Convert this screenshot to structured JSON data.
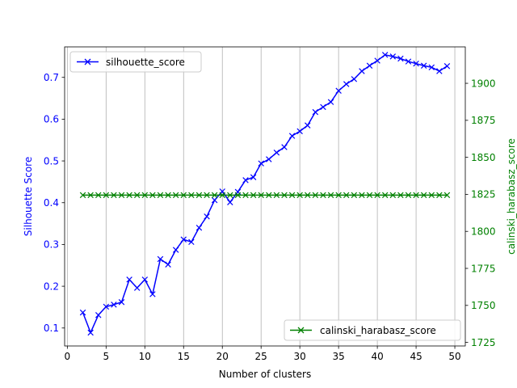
{
  "chart_data": {
    "type": "line",
    "xlabel": "Number of clusters",
    "ylabel_left": "Silhouette Score",
    "ylabel_right": "calinski_harabasz_score",
    "xlim": [
      -0.35,
      51.35
    ],
    "ylim_left": [
      0.057,
      0.773
    ],
    "ylim_right": [
      1722.6,
      1924.6
    ],
    "x_ticks": [
      0,
      5,
      10,
      15,
      20,
      25,
      30,
      35,
      40,
      45,
      50
    ],
    "y_left_ticks": [
      0.1,
      0.2,
      0.3,
      0.4,
      0.5,
      0.6,
      0.7
    ],
    "y_right_ticks": [
      1725,
      1750,
      1775,
      1800,
      1825,
      1850,
      1875,
      1900
    ],
    "grid": "x-axis vertical lines",
    "x": [
      2,
      3,
      4,
      5,
      6,
      7,
      8,
      9,
      10,
      11,
      12,
      13,
      14,
      15,
      16,
      17,
      18,
      19,
      20,
      21,
      22,
      23,
      24,
      25,
      26,
      27,
      28,
      29,
      30,
      31,
      32,
      33,
      34,
      35,
      36,
      37,
      38,
      39,
      40,
      41,
      42,
      43,
      44,
      45,
      46,
      47,
      48,
      49
    ],
    "series": [
      {
        "name": "silhouette_score",
        "axis": "left",
        "color": "#0000ff",
        "marker": "x",
        "values": [
          0.137,
          0.089,
          0.131,
          0.151,
          0.156,
          0.162,
          0.216,
          0.196,
          0.216,
          0.181,
          0.265,
          0.252,
          0.287,
          0.312,
          0.306,
          0.34,
          0.367,
          0.406,
          0.427,
          0.401,
          0.426,
          0.454,
          0.461,
          0.494,
          0.504,
          0.52,
          0.533,
          0.56,
          0.571,
          0.585,
          0.617,
          0.629,
          0.641,
          0.668,
          0.684,
          0.696,
          0.715,
          0.728,
          0.74,
          0.754,
          0.75,
          0.745,
          0.738,
          0.733,
          0.728,
          0.724,
          0.715,
          0.727
        ],
        "legend_position": "upper left"
      },
      {
        "name": "calinski_harabasz_score",
        "axis": "right",
        "color": "#008000",
        "marker": "x",
        "values": [
          1824.5,
          1824.5,
          1824.5,
          1824.5,
          1824.5,
          1824.5,
          1824.5,
          1824.5,
          1824.5,
          1824.5,
          1824.5,
          1824.5,
          1824.5,
          1824.5,
          1824.5,
          1824.5,
          1824.5,
          1824.5,
          1824.5,
          1824.5,
          1824.5,
          1824.5,
          1824.5,
          1824.5,
          1824.5,
          1824.5,
          1824.5,
          1824.5,
          1824.5,
          1824.5,
          1824.5,
          1824.5,
          1824.5,
          1824.5,
          1824.5,
          1824.5,
          1824.5,
          1824.5,
          1824.5,
          1824.5,
          1824.5,
          1824.5,
          1824.5,
          1824.5,
          1824.5,
          1824.5,
          1824.5,
          1824.5
        ],
        "legend_position": "lower right"
      }
    ]
  }
}
